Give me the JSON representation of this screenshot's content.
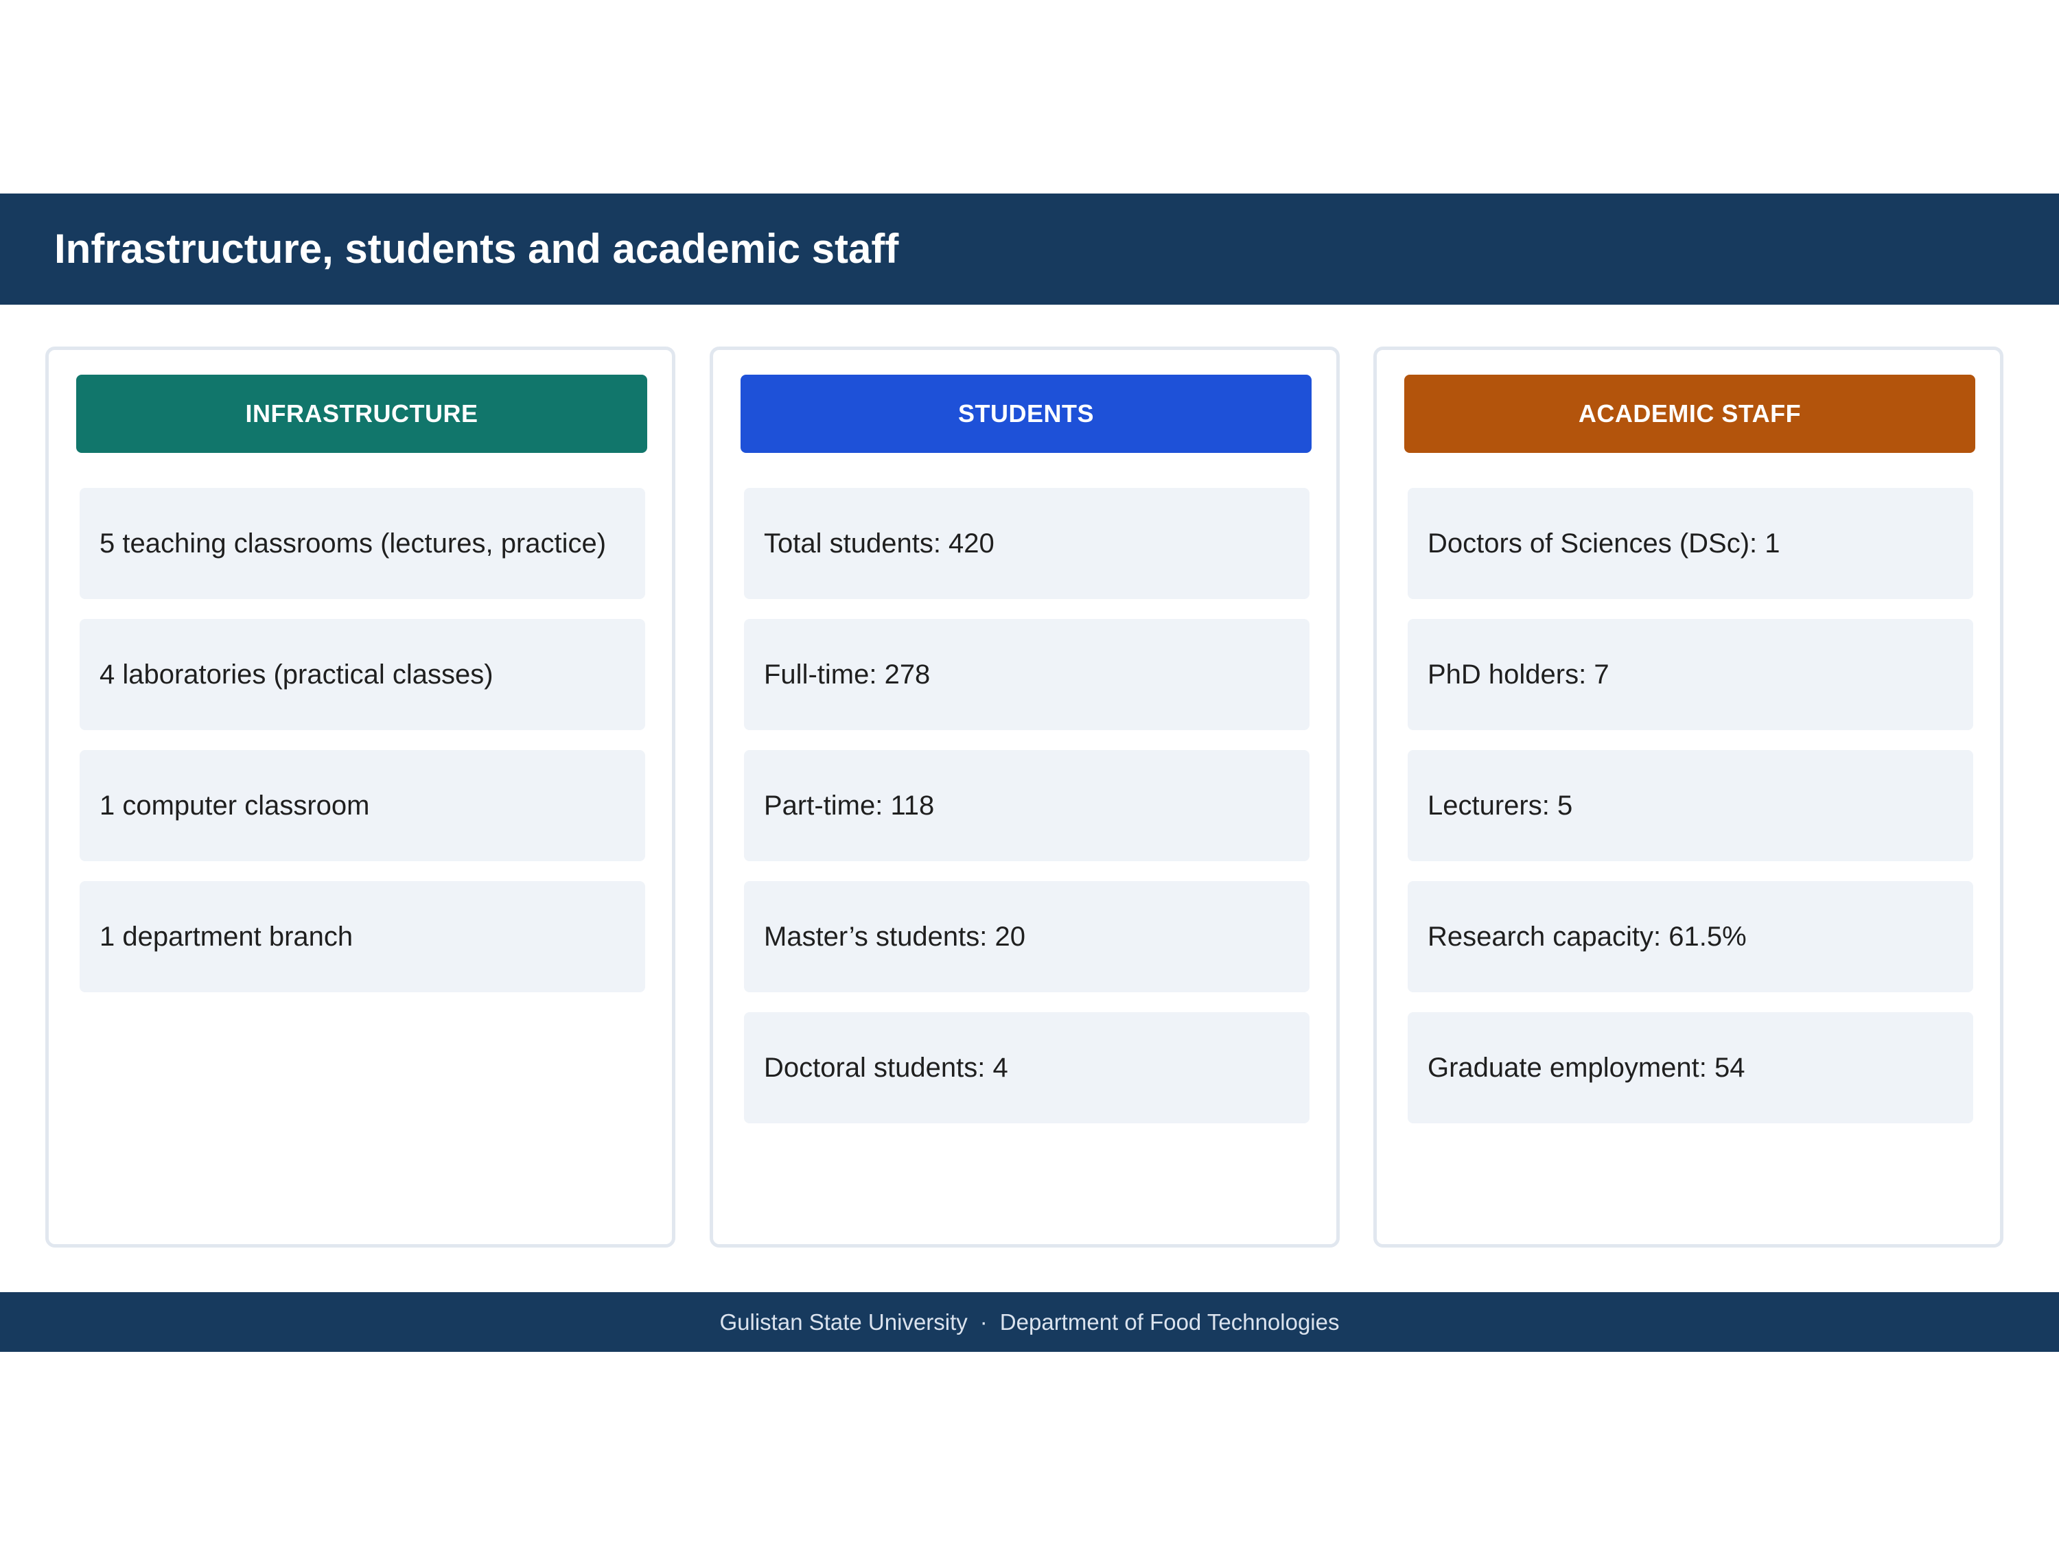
{
  "header": {
    "title": "Infrastructure, students and academic staff"
  },
  "columns": [
    {
      "title": "INFRASTRUCTURE",
      "color": "#11766b",
      "items": [
        "5 teaching classrooms (lectures, practice)",
        "4 laboratories (practical classes)",
        "1 computer classroom",
        "1 department branch"
      ]
    },
    {
      "title": "STUDENTS",
      "color": "#1e51d8",
      "items": [
        "Total students: 420",
        "Full-time: 278",
        "Part-time: 118",
        "Master’s students: 20",
        "Doctoral students: 4"
      ]
    },
    {
      "title": "ACADEMIC STAFF",
      "color": "#b3540c",
      "items": [
        "Doctors of Sciences (DSc): 1",
        "PhD holders: 7",
        "Lecturers: 5",
        "Research capacity: 61.5%",
        "Graduate employment: 54"
      ]
    }
  ],
  "footer": {
    "university": "Gulistan State University",
    "separator": "·",
    "department": "Department of Food Technologies"
  },
  "colors": {
    "header_background": "#173a5e",
    "item_background": "#eff3f8",
    "card_border": "#e1e7ef"
  }
}
